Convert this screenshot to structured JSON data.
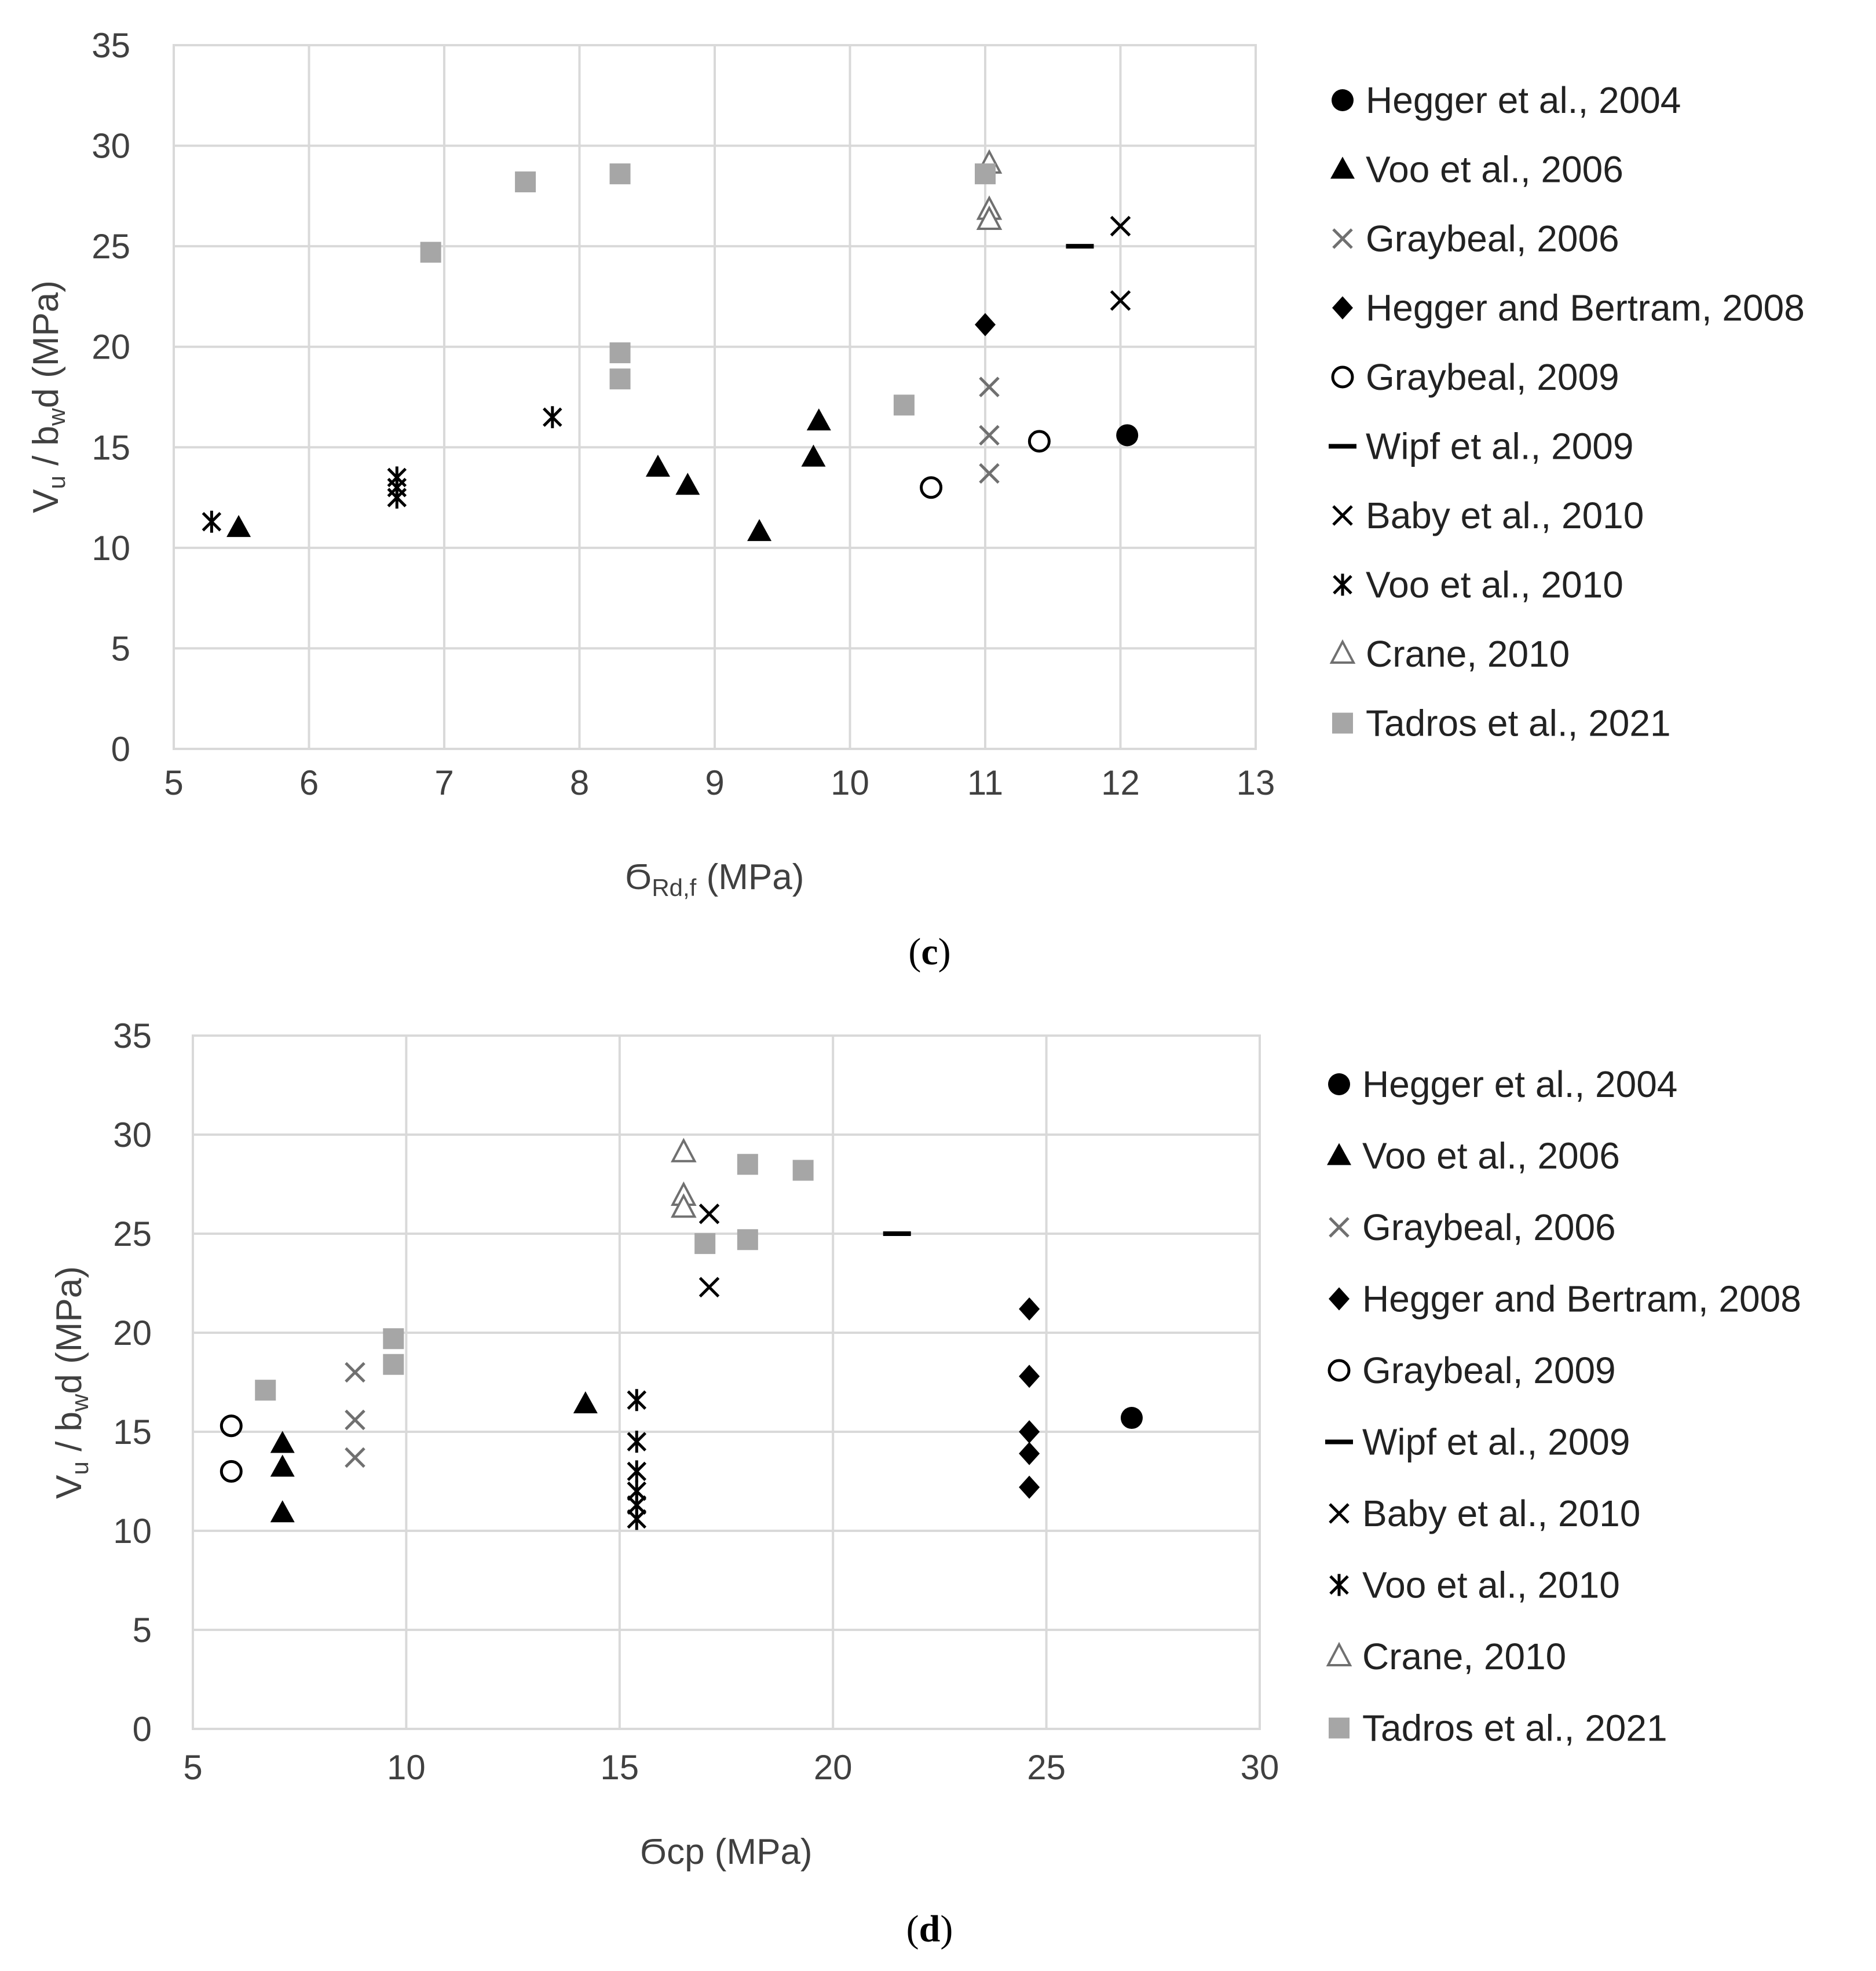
{
  "colors": {
    "black": "#000000",
    "gray": "#707070",
    "square_gray": "#a6a6a6",
    "grid": "#d9d9d9"
  },
  "legend_entries": [
    {
      "label": "Hegger et al., 2004",
      "marker": "filled-circle-icon"
    },
    {
      "label": "Voo et al., 2006",
      "marker": "filled-triangle-icon"
    },
    {
      "label": "Graybeal, 2006",
      "marker": "gray-x-icon"
    },
    {
      "label": "Hegger and Bertram, 2008",
      "marker": "filled-diamond-icon"
    },
    {
      "label": "Graybeal, 2009",
      "marker": "open-circle-icon"
    },
    {
      "label": "Wipf et al., 2009",
      "marker": "dash-icon"
    },
    {
      "label": "Baby et al., 2010",
      "marker": "black-x-icon"
    },
    {
      "label": "Voo et al., 2010",
      "marker": "asterisk-icon"
    },
    {
      "label": "Crane, 2010",
      "marker": "open-triangle-icon"
    },
    {
      "label": "Tadros et al., 2021",
      "marker": "gray-square-icon"
    }
  ],
  "chart_data": [
    {
      "type": "scatter",
      "caption": "(c)",
      "caption_letter": "c",
      "xlabel": "ϬRd,f (MPa)",
      "xlabel_main": "Ϭ",
      "xlabel_sub": "Rd,f",
      "xlabel_rest": " (MPa)",
      "ylabel": "Vu / bwd (MPa)",
      "xlim": [
        5,
        13
      ],
      "ylim": [
        0,
        35
      ],
      "xticks": [
        5,
        6,
        7,
        8,
        9,
        10,
        11,
        12,
        13
      ],
      "yticks": [
        0,
        5,
        10,
        15,
        20,
        25,
        30,
        35
      ],
      "grid": true,
      "legend_position": "right",
      "series": [
        {
          "name": "Hegger et al., 2004",
          "points": [
            [
              12.05,
              15.6
            ]
          ]
        },
        {
          "name": "Voo et al., 2006",
          "points": [
            [
              5.48,
              11.0
            ],
            [
              8.58,
              14.0
            ],
            [
              8.8,
              13.1
            ],
            [
              9.33,
              10.8
            ],
            [
              9.73,
              14.5
            ],
            [
              9.77,
              16.3
            ]
          ]
        },
        {
          "name": "Graybeal, 2006",
          "points": [
            [
              11.03,
              18.0
            ],
            [
              11.03,
              15.6
            ],
            [
              11.03,
              13.7
            ]
          ]
        },
        {
          "name": "Hegger and Bertram, 2008",
          "points": [
            [
              11.0,
              21.1
            ]
          ]
        },
        {
          "name": "Graybeal, 2009",
          "points": [
            [
              10.6,
              13.0
            ],
            [
              11.4,
              15.3
            ]
          ]
        },
        {
          "name": "Wipf et al., 2009",
          "points": [
            [
              11.7,
              25.0
            ]
          ]
        },
        {
          "name": "Baby et al., 2010",
          "points": [
            [
              12.0,
              26.0
            ],
            [
              12.0,
              22.3
            ]
          ]
        },
        {
          "name": "Voo et al., 2010",
          "points": [
            [
              5.28,
              11.3
            ],
            [
              6.65,
              12.5
            ],
            [
              6.65,
              13.0
            ],
            [
              6.65,
              13.5
            ],
            [
              7.8,
              16.5
            ]
          ]
        },
        {
          "name": "Crane, 2010",
          "points": [
            [
              11.03,
              29.1
            ],
            [
              11.03,
              26.8
            ],
            [
              11.03,
              26.3
            ]
          ]
        },
        {
          "name": "Tadros et al., 2021",
          "points": [
            [
              6.9,
              24.7
            ],
            [
              7.6,
              28.2
            ],
            [
              8.3,
              28.6
            ],
            [
              8.3,
              19.7
            ],
            [
              8.3,
              18.4
            ],
            [
              10.4,
              17.1
            ],
            [
              11.0,
              28.6
            ]
          ]
        }
      ]
    },
    {
      "type": "scatter",
      "caption": "(d)",
      "caption_letter": "d",
      "xlabel": "Ϭcp (MPa)",
      "xlabel_main": "Ϭcp",
      "xlabel_sub": "",
      "xlabel_rest": " (MPa)",
      "ylabel": "Vu / bwd (MPa)",
      "xlim": [
        5,
        30
      ],
      "ylim": [
        0,
        35
      ],
      "xticks": [
        5,
        10,
        15,
        20,
        25,
        30
      ],
      "yticks": [
        0,
        5,
        10,
        15,
        20,
        25,
        30,
        35
      ],
      "grid": true,
      "legend_position": "right",
      "series": [
        {
          "name": "Hegger et al., 2004",
          "points": [
            [
              27.0,
              15.7
            ]
          ]
        },
        {
          "name": "Voo et al., 2006",
          "points": [
            [
              7.1,
              14.4
            ],
            [
              7.1,
              13.2
            ],
            [
              7.1,
              10.9
            ],
            [
              14.2,
              16.4
            ]
          ]
        },
        {
          "name": "Graybeal, 2006",
          "points": [
            [
              8.8,
              18.0
            ],
            [
              8.8,
              15.6
            ],
            [
              8.8,
              13.7
            ]
          ]
        },
        {
          "name": "Hegger and Bertram, 2008",
          "points": [
            [
              24.6,
              21.2
            ],
            [
              24.6,
              17.8
            ],
            [
              24.6,
              15.0
            ],
            [
              24.6,
              13.9
            ],
            [
              24.6,
              12.2
            ]
          ]
        },
        {
          "name": "Graybeal, 2009",
          "points": [
            [
              5.9,
              15.3
            ],
            [
              5.9,
              13.0
            ]
          ]
        },
        {
          "name": "Wipf et al., 2009",
          "points": [
            [
              21.5,
              25.0
            ]
          ]
        },
        {
          "name": "Baby et al., 2010",
          "points": [
            [
              17.1,
              26.0
            ],
            [
              17.1,
              22.3
            ]
          ]
        },
        {
          "name": "Voo et al., 2010",
          "points": [
            [
              15.4,
              16.6
            ],
            [
              15.4,
              14.5
            ],
            [
              15.4,
              13.0
            ],
            [
              15.4,
              12.0
            ],
            [
              15.4,
              11.3
            ],
            [
              15.4,
              10.6
            ]
          ]
        },
        {
          "name": "Crane, 2010",
          "points": [
            [
              16.5,
              29.1
            ],
            [
              16.5,
              26.9
            ],
            [
              16.5,
              26.3
            ]
          ]
        },
        {
          "name": "Tadros et al., 2021",
          "points": [
            [
              6.7,
              17.1
            ],
            [
              9.7,
              19.7
            ],
            [
              9.7,
              18.4
            ],
            [
              17.0,
              24.5
            ],
            [
              18.0,
              24.7
            ],
            [
              18.0,
              28.5
            ],
            [
              19.3,
              28.2
            ]
          ]
        }
      ]
    }
  ]
}
